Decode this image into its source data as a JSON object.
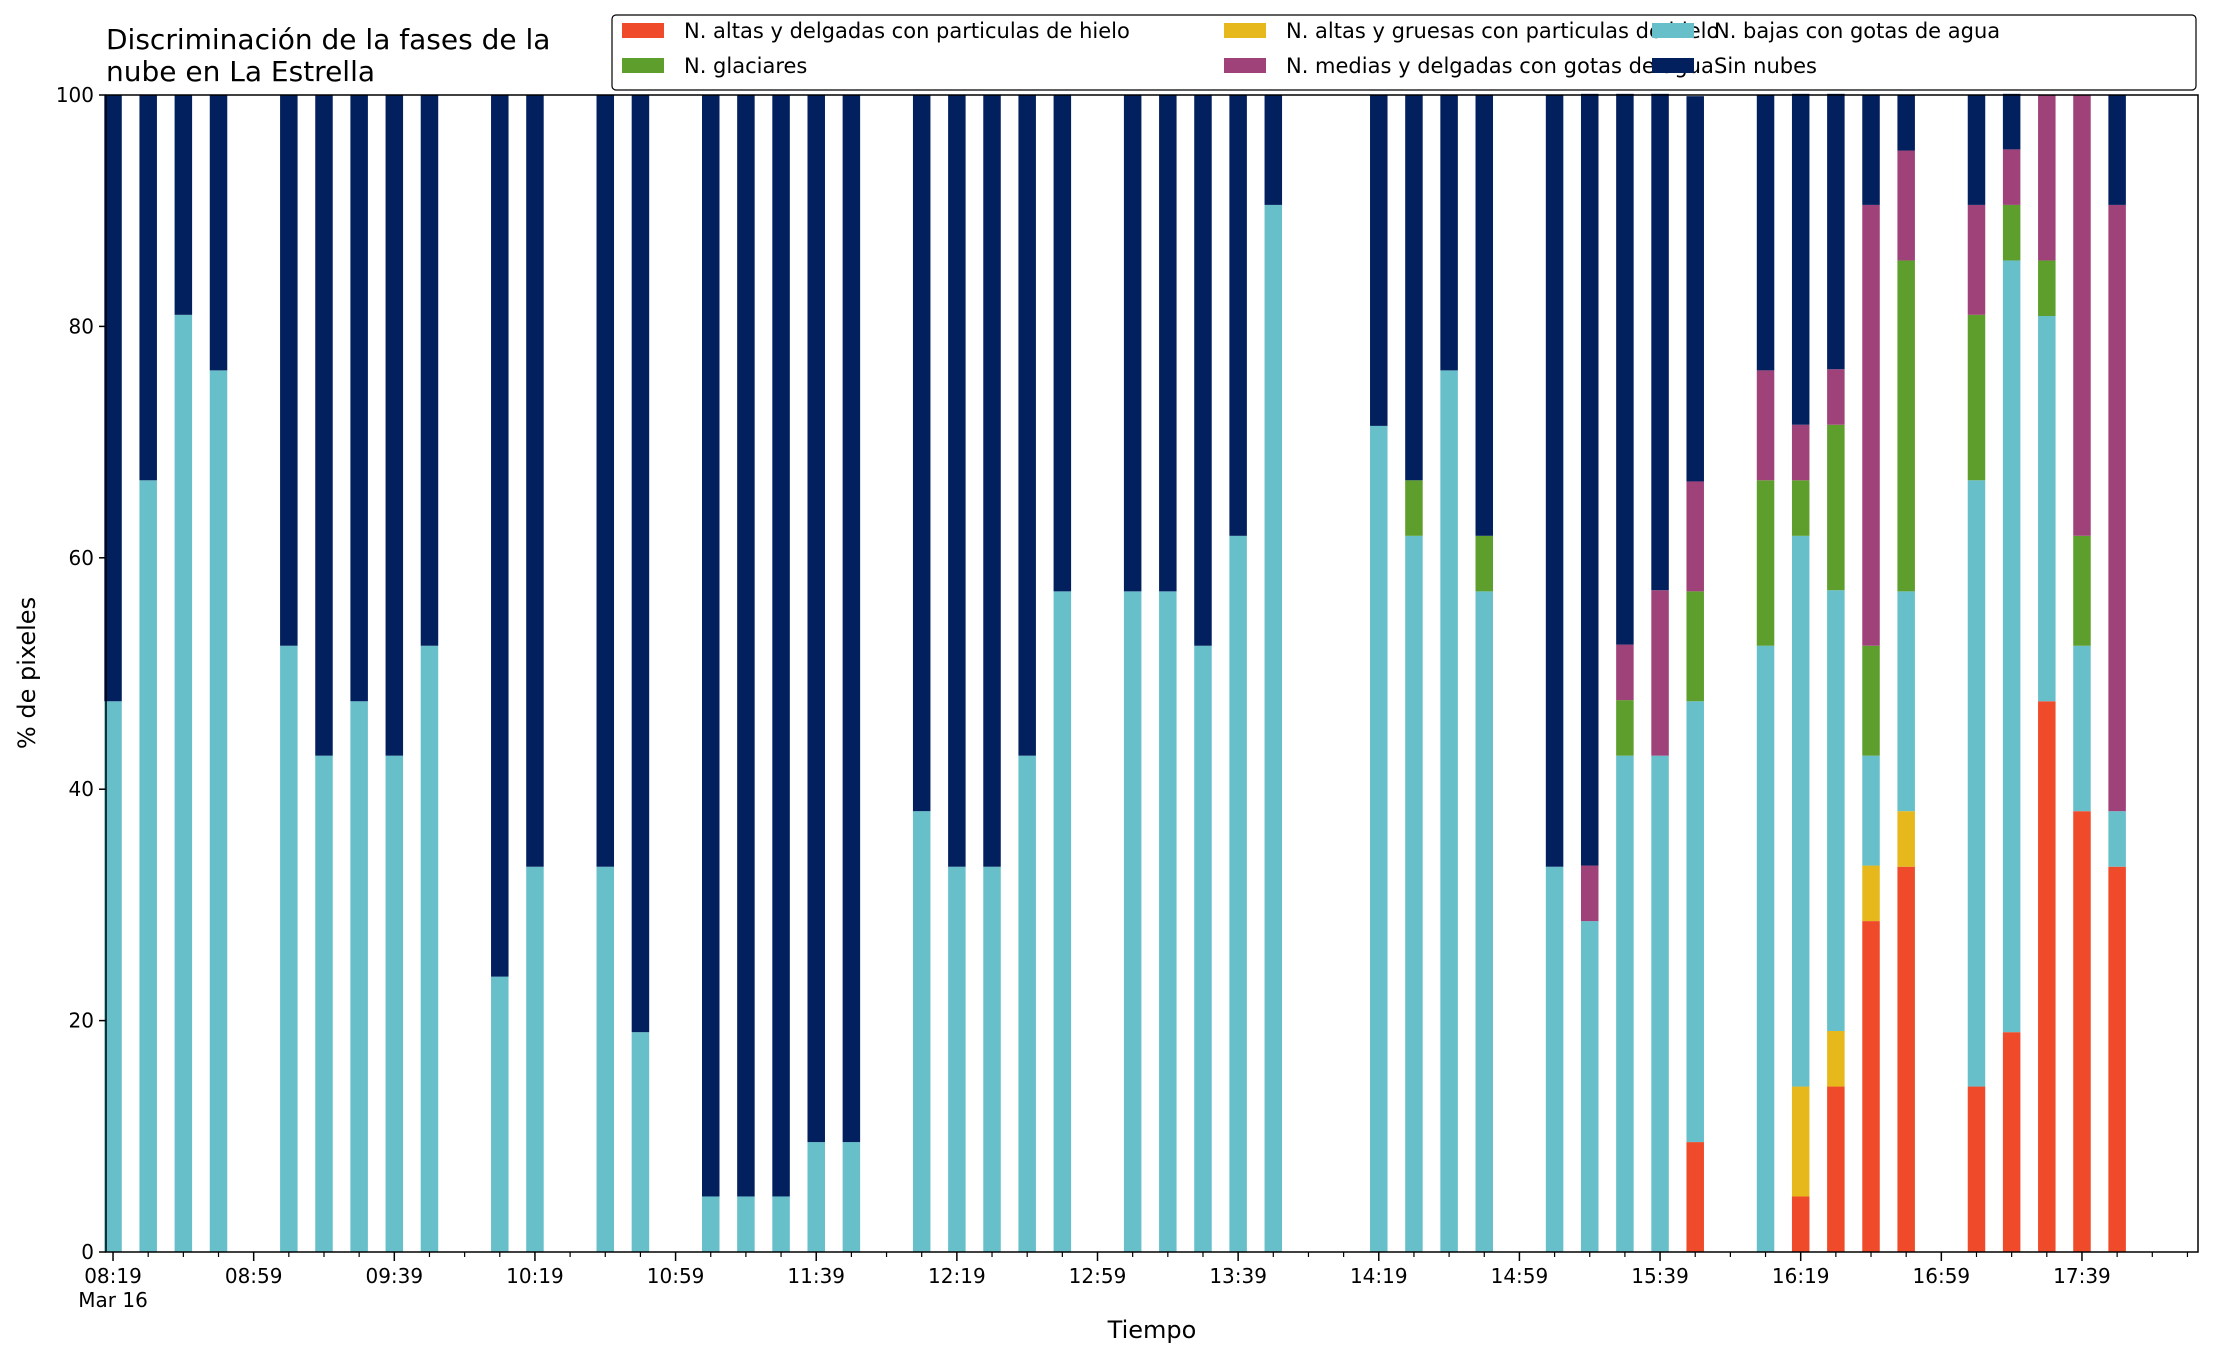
{
  "chart_data": {
    "type": "bar",
    "stacked": true,
    "title": "Discriminación de la fases de la\nnube en La Estrella",
    "xlabel": "Tiempo",
    "ylabel": "% de pixeles",
    "ylim": [
      0,
      100
    ],
    "yticks": [
      0,
      20,
      40,
      60,
      80,
      100
    ],
    "x_range_minutes": [
      8.0,
      18.2
    ],
    "x_range_minutes_start": 497,
    "x_range_minutes_end": 1092,
    "xtick_labels": [
      "08:19",
      "08:59",
      "09:39",
      "10:19",
      "10:59",
      "11:39",
      "12:19",
      "12:59",
      "13:39",
      "14:19",
      "14:59",
      "15:39",
      "16:19",
      "16:59",
      "17:39"
    ],
    "xtick_sublabel": "Mar 16",
    "legend": {
      "placement": "top-right",
      "columns": 3
    },
    "series": [
      {
        "name": "N. altas y delgadas con particulas de hielo",
        "color": "#ef4a2a"
      },
      {
        "name": "N. altas y gruesas con particulas de hielo",
        "color": "#e6b81c"
      },
      {
        "name": "N. bajas con gotas de agua",
        "color": "#67bfca"
      },
      {
        "name": "N. glaciares",
        "color": "#5d9e2c"
      },
      {
        "name": "N. medias y delgadas con gotas de agua",
        "color": "#a0427a"
      },
      {
        "name": "Sin nubes",
        "color": "#021f5e"
      }
    ],
    "bars": [
      {
        "time": "08:19",
        "values": [
          0,
          0,
          47.6,
          0,
          0,
          52.4
        ]
      },
      {
        "time": "08:29",
        "values": [
          0,
          0,
          66.7,
          0,
          0,
          33.3
        ]
      },
      {
        "time": "08:39",
        "values": [
          0,
          0,
          81.0,
          0,
          0,
          19.0
        ]
      },
      {
        "time": "08:49",
        "values": [
          0,
          0,
          76.2,
          0,
          0,
          23.8
        ]
      },
      {
        "time": "09:09",
        "values": [
          0,
          0,
          52.4,
          0,
          0,
          47.6
        ]
      },
      {
        "time": "09:19",
        "values": [
          0,
          0,
          42.9,
          0,
          0,
          57.1
        ]
      },
      {
        "time": "09:29",
        "values": [
          0,
          0,
          47.6,
          0,
          0,
          52.4
        ]
      },
      {
        "time": "09:39",
        "values": [
          0,
          0,
          42.9,
          0,
          0,
          57.1
        ]
      },
      {
        "time": "09:49",
        "values": [
          0,
          0,
          52.4,
          0,
          0,
          47.6
        ]
      },
      {
        "time": "10:09",
        "values": [
          0,
          0,
          23.8,
          0,
          0,
          76.2
        ]
      },
      {
        "time": "10:19",
        "values": [
          0,
          0,
          33.3,
          0,
          0,
          66.7
        ]
      },
      {
        "time": "10:39",
        "values": [
          0,
          0,
          33.3,
          0,
          0,
          66.7
        ]
      },
      {
        "time": "10:49",
        "values": [
          0,
          0,
          19.0,
          0,
          0,
          81.0
        ]
      },
      {
        "time": "11:09",
        "values": [
          0,
          0,
          4.8,
          0,
          0,
          95.2
        ]
      },
      {
        "time": "11:19",
        "values": [
          0,
          0,
          4.8,
          0,
          0,
          95.2
        ]
      },
      {
        "time": "11:29",
        "values": [
          0,
          0,
          4.8,
          0,
          0,
          95.2
        ]
      },
      {
        "time": "11:39",
        "values": [
          0,
          0,
          9.5,
          0,
          0,
          90.5
        ]
      },
      {
        "time": "11:49",
        "values": [
          0,
          0,
          9.5,
          0,
          0,
          90.5
        ]
      },
      {
        "time": "12:09",
        "values": [
          0,
          0,
          38.1,
          0,
          0,
          61.9
        ]
      },
      {
        "time": "12:19",
        "values": [
          0,
          0,
          33.3,
          0,
          0,
          66.7
        ]
      },
      {
        "time": "12:29",
        "values": [
          0,
          0,
          33.3,
          0,
          0,
          66.7
        ]
      },
      {
        "time": "12:39",
        "values": [
          0,
          0,
          42.9,
          0,
          0,
          57.1
        ]
      },
      {
        "time": "12:49",
        "values": [
          0,
          0,
          57.1,
          0,
          0,
          42.9
        ]
      },
      {
        "time": "13:09",
        "values": [
          0,
          0,
          57.1,
          0,
          0,
          42.9
        ]
      },
      {
        "time": "13:19",
        "values": [
          0,
          0,
          57.1,
          0,
          0,
          42.9
        ]
      },
      {
        "time": "13:29",
        "values": [
          0,
          0,
          52.4,
          0,
          0,
          47.6
        ]
      },
      {
        "time": "13:39",
        "values": [
          0,
          0,
          61.9,
          0,
          0,
          38.1
        ]
      },
      {
        "time": "13:49",
        "values": [
          0,
          0,
          90.5,
          0,
          0,
          9.5
        ]
      },
      {
        "time": "14:19",
        "values": [
          0,
          0,
          71.4,
          0,
          0,
          28.6
        ]
      },
      {
        "time": "14:29",
        "values": [
          0,
          0,
          61.9,
          4.8,
          0,
          33.3
        ]
      },
      {
        "time": "14:39",
        "values": [
          0,
          0,
          76.2,
          0,
          0,
          23.8
        ]
      },
      {
        "time": "14:49",
        "values": [
          0,
          0,
          57.1,
          4.8,
          0,
          38.1
        ]
      },
      {
        "time": "15:09",
        "values": [
          0,
          0,
          33.3,
          0,
          0,
          66.7
        ]
      },
      {
        "time": "15:19",
        "values": [
          0,
          0,
          28.6,
          0,
          4.8,
          66.7
        ]
      },
      {
        "time": "15:29",
        "values": [
          0,
          0,
          42.9,
          4.8,
          4.8,
          47.6
        ]
      },
      {
        "time": "15:39",
        "values": [
          0,
          0,
          42.9,
          0,
          14.3,
          42.9
        ]
      },
      {
        "time": "15:49",
        "values": [
          9.5,
          0,
          38.1,
          9.5,
          9.5,
          33.3
        ]
      },
      {
        "time": "16:09",
        "values": [
          0,
          0,
          52.4,
          14.3,
          9.5,
          23.8
        ]
      },
      {
        "time": "16:19",
        "values": [
          4.8,
          9.5,
          47.6,
          4.8,
          4.8,
          28.6
        ]
      },
      {
        "time": "16:29",
        "values": [
          14.3,
          4.8,
          38.1,
          14.3,
          4.8,
          23.8
        ]
      },
      {
        "time": "16:39",
        "values": [
          28.6,
          4.8,
          9.5,
          9.5,
          38.1,
          9.5
        ]
      },
      {
        "time": "16:49",
        "values": [
          33.3,
          4.8,
          19.0,
          28.6,
          9.5,
          4.8
        ]
      },
      {
        "time": "17:09",
        "values": [
          14.3,
          0,
          52.4,
          14.3,
          9.5,
          9.5
        ]
      },
      {
        "time": "17:19",
        "values": [
          19.0,
          0,
          66.7,
          4.8,
          4.8,
          4.8
        ]
      },
      {
        "time": "17:29",
        "values": [
          47.6,
          0,
          33.3,
          4.8,
          14.3,
          0
        ]
      },
      {
        "time": "17:39",
        "values": [
          38.1,
          0,
          14.3,
          9.5,
          38.1,
          0
        ]
      },
      {
        "time": "17:49",
        "values": [
          33.3,
          0,
          4.8,
          0,
          52.4,
          9.5
        ]
      }
    ]
  }
}
